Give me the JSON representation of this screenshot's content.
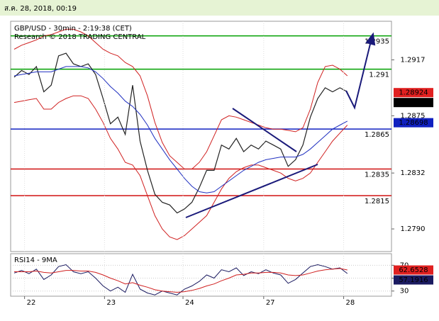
{
  "header": {
    "text": "ส.ค. 28, 2018, 00:19"
  },
  "chart_data": [
    {
      "type": "line",
      "title": "GBP/USD - 30min - 2:19:38 (CET)",
      "subtitle": "Research © 2018 TRADING CENTRAL",
      "x": [
        0,
        1,
        2,
        3,
        4,
        5,
        6,
        7,
        8,
        9,
        10,
        11,
        12,
        13,
        14,
        15,
        16,
        17,
        18,
        19,
        20,
        21,
        22,
        23,
        24,
        25,
        26,
        27,
        28,
        29,
        30,
        31,
        32,
        33,
        34,
        35,
        36,
        37,
        38,
        39,
        40,
        41,
        42,
        43,
        44,
        45
      ],
      "xlim": [
        -0.48,
        50.96
      ],
      "ylim": [
        1.2773,
        1.2946
      ],
      "yticks": [
        1.2917,
        1.2875,
        1.2832,
        {
          "value": 1.279,
          "label": "1.2790"
        }
      ],
      "series": [
        {
          "color": "#222222",
          "values": [
            1.2904,
            1.2909,
            1.2906,
            1.2912,
            1.2893,
            1.2898,
            1.292,
            1.2922,
            1.2914,
            1.2912,
            1.2914,
            1.2906,
            1.2888,
            1.2869,
            1.2874,
            1.2861,
            1.2898,
            1.2856,
            1.2834,
            1.2816,
            1.281,
            1.2808,
            1.2802,
            1.2805,
            1.281,
            1.2821,
            1.2834,
            1.2834,
            1.2853,
            1.285,
            1.2858,
            1.2848,
            1.2853,
            1.285,
            1.2856,
            1.2853,
            1.285,
            1.2837,
            1.2842,
            1.2853,
            1.2874,
            1.2888,
            1.2896,
            1.2893,
            1.2896,
            1.2893
          ]
        },
        {
          "color": "#d02020",
          "values": [
            1.2925,
            1.2928,
            1.293,
            1.2932,
            1.2935,
            1.2936,
            1.2938,
            1.294,
            1.294,
            1.2938,
            1.2935,
            1.293,
            1.2925,
            1.2922,
            1.292,
            1.2915,
            1.2912,
            1.2905,
            1.289,
            1.287,
            1.2855,
            1.2845,
            1.284,
            1.2835,
            1.2835,
            1.284,
            1.2848,
            1.286,
            1.2872,
            1.2875,
            1.2874,
            1.2872,
            1.287,
            1.2868,
            1.2866,
            1.2865,
            1.2865,
            1.2864,
            1.2863,
            1.2866,
            1.288,
            1.29,
            1.2912,
            1.2913,
            1.291,
            1.2905
          ]
        },
        {
          "color": "#d02020",
          "values": [
            1.2885,
            1.2886,
            1.2887,
            1.2888,
            1.288,
            1.288,
            1.2885,
            1.2888,
            1.289,
            1.289,
            1.2888,
            1.288,
            1.287,
            1.2858,
            1.285,
            1.284,
            1.2838,
            1.283,
            1.2815,
            1.28,
            1.279,
            1.2784,
            1.2782,
            1.2785,
            1.279,
            1.2795,
            1.28,
            1.281,
            1.282,
            1.2828,
            1.2833,
            1.2836,
            1.2838,
            1.2838,
            1.2836,
            1.2834,
            1.2832,
            1.2828,
            1.2826,
            1.2828,
            1.2832,
            1.284,
            1.2848,
            1.2856,
            1.2862,
            1.2868
          ]
        },
        {
          "color": "#2030c0",
          "values": [
            1.2905,
            1.2906,
            1.2907,
            1.2908,
            1.2908,
            1.2908,
            1.291,
            1.2912,
            1.2912,
            1.2912,
            1.2911,
            1.2908,
            1.2903,
            1.2897,
            1.2892,
            1.2886,
            1.2882,
            1.2876,
            1.2868,
            1.2858,
            1.285,
            1.2842,
            1.2835,
            1.2828,
            1.2822,
            1.2818,
            1.2817,
            1.2818,
            1.2822,
            1.2826,
            1.283,
            1.2834,
            1.2837,
            1.284,
            1.2842,
            1.2843,
            1.2844,
            1.2844,
            1.2844,
            1.2846,
            1.285,
            1.2855,
            1.286,
            1.2865,
            1.2868,
            1.2871
          ]
        }
      ],
      "levels": [
        {
          "value": 1.2935,
          "color": "#00a000"
        },
        {
          "value": 1.291,
          "color": "#00a000"
        },
        {
          "value": 1.2865,
          "color": "#1020c0"
        },
        {
          "value": 1.2835,
          "color": "#d01010"
        },
        {
          "value": 1.2815,
          "color": "#d01010"
        }
      ],
      "last_values": [
        {
          "value": 1.28924,
          "color": "#e02020"
        },
        {
          "value": 1.2892,
          "color": "#000000"
        },
        {
          "value": 1.28698,
          "color": "#1020c0"
        }
      ]
    },
    {
      "type": "line",
      "title": "RSI14 - 9MA",
      "x": [
        0,
        1,
        2,
        3,
        4,
        5,
        6,
        7,
        8,
        9,
        10,
        11,
        12,
        13,
        14,
        15,
        16,
        17,
        18,
        19,
        20,
        21,
        22,
        23,
        24,
        25,
        26,
        27,
        28,
        29,
        30,
        31,
        32,
        33,
        34,
        35,
        36,
        37,
        38,
        39,
        40,
        41,
        42,
        43,
        44,
        45
      ],
      "xlim": [
        -0.48,
        50.96
      ],
      "xticks": [
        {
          "value": 1.4,
          "label": "22"
        },
        {
          "value": 12.2,
          "label": "23"
        },
        {
          "value": 22.8,
          "label": "24"
        },
        {
          "value": 33.7,
          "label": "27"
        },
        {
          "value": 44.5,
          "label": "28"
        }
      ],
      "ylim": [
        22,
        88
      ],
      "yticks": [
        70,
        50,
        30
      ],
      "series": [
        {
          "color": "#1a1a60",
          "values": [
            58,
            62,
            57,
            64,
            48,
            55,
            68,
            71,
            60,
            57,
            60,
            50,
            38,
            30,
            36,
            28,
            56,
            33,
            27,
            24,
            30,
            27,
            24,
            33,
            38,
            45,
            55,
            50,
            63,
            60,
            66,
            54,
            60,
            57,
            63,
            58,
            55,
            42,
            48,
            58,
            68,
            71,
            68,
            64,
            66,
            57.1916
          ]
        },
        {
          "color": "#d02020",
          "values": [
            60,
            60,
            60,
            61,
            59,
            58,
            60,
            62,
            62,
            61,
            61,
            59,
            55,
            50,
            46,
            41,
            43,
            39,
            36,
            32,
            30,
            29,
            28,
            29,
            31,
            34,
            38,
            41,
            46,
            50,
            55,
            56,
            58,
            58,
            59,
            59,
            58,
            55,
            54,
            55,
            58,
            61,
            63,
            64,
            65,
            62.6528
          ]
        }
      ],
      "last_values": [
        {
          "value": 62.6528,
          "color": "#e02020"
        },
        {
          "value": 57.1916,
          "color": "#1a1a60"
        }
      ]
    }
  ]
}
